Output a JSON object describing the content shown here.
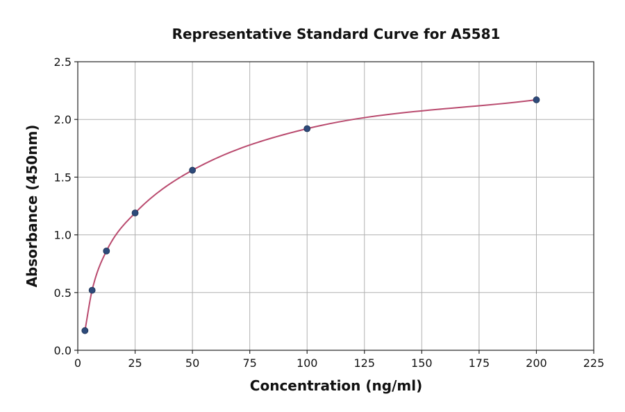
{
  "chart_data": {
    "type": "scatter",
    "title": "Representative Standard Curve for A5581",
    "xlabel": "Concentration (ng/ml)",
    "ylabel": "Absorbance (450nm)",
    "xlim": [
      0,
      225
    ],
    "ylim": [
      0,
      2.5
    ],
    "x_ticks": [
      "0",
      "25",
      "50",
      "75",
      "100",
      "125",
      "150",
      "175",
      "200",
      "225"
    ],
    "y_ticks": [
      "0.0",
      "0.5",
      "1.0",
      "1.5",
      "2.0",
      "2.5"
    ],
    "grid": true,
    "series": [
      {
        "x": [
          3.125,
          6.25,
          12.5,
          25,
          50,
          100,
          200
        ],
        "y": [
          0.17,
          0.52,
          0.86,
          1.19,
          1.56,
          1.92,
          2.17
        ]
      }
    ],
    "colors": {
      "points": "#2d4a7a",
      "curve": "#b94a6e"
    }
  }
}
